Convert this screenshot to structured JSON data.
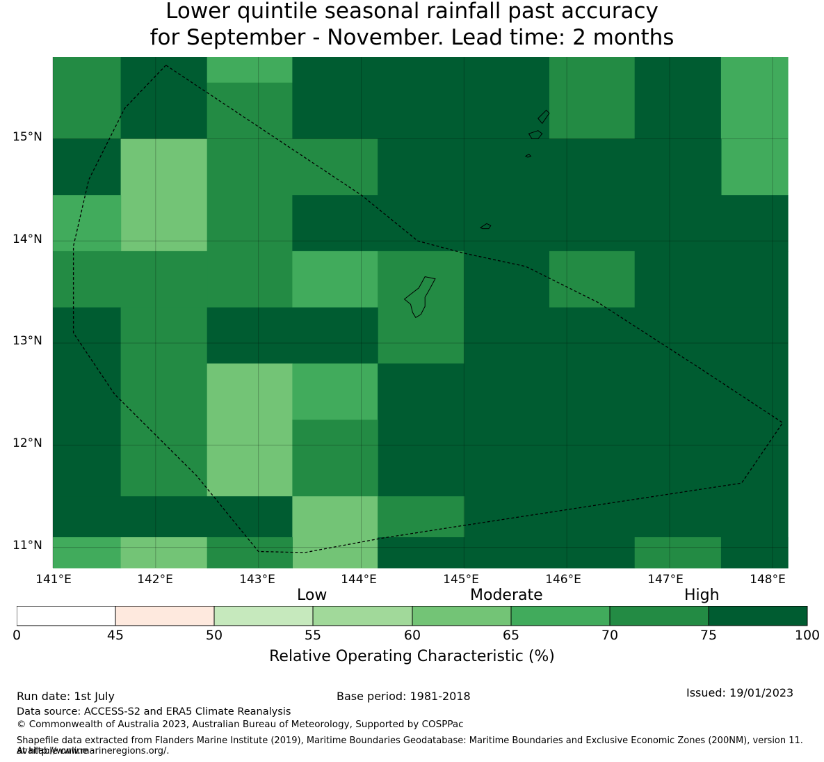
{
  "title_line1": "Lower quintile seasonal rainfall past accuracy",
  "title_line2": "for September - November. Lead time: 2 months",
  "colors": {
    "c45_50": "#fee9de",
    "c50_55": "#c6e9bd",
    "c55_60": "#a1d99a",
    "c60_65": "#73c476",
    "c65_70": "#41ab5c",
    "c70_75": "#238b44",
    "c75_100": "#005c31"
  },
  "map": {
    "lon_range": [
      141,
      148.15
    ],
    "lat_range": [
      10.8,
      15.8
    ],
    "lat_labels": [
      "15°N",
      "14°N",
      "13°N",
      "12°N",
      "11°N"
    ],
    "lon_labels": [
      "141°E",
      "142°E",
      "143°E",
      "144°E",
      "145°E",
      "146°E",
      "147°E",
      "148°E"
    ],
    "grid_cells": [
      {
        "lon0": 141.0,
        "lon1": 141.66,
        "lat0": 15.0,
        "lat1": 15.8,
        "cls": "c70_75"
      },
      {
        "lon0": 141.66,
        "lon1": 142.5,
        "lat0": 15.0,
        "lat1": 15.8,
        "cls": "c75_100"
      },
      {
        "lon0": 142.5,
        "lon1": 143.33,
        "lat0": 15.55,
        "lat1": 15.8,
        "cls": "c65_70"
      },
      {
        "lon0": 142.5,
        "lon1": 143.33,
        "lat0": 15.0,
        "lat1": 15.55,
        "cls": "c70_75"
      },
      {
        "lon0": 143.33,
        "lon1": 145.83,
        "lat0": 15.0,
        "lat1": 15.8,
        "cls": "c75_100"
      },
      {
        "lon0": 145.83,
        "lon1": 146.66,
        "lat0": 15.0,
        "lat1": 15.8,
        "cls": "c70_75"
      },
      {
        "lon0": 146.66,
        "lon1": 147.5,
        "lat0": 15.0,
        "lat1": 15.8,
        "cls": "c75_100"
      },
      {
        "lon0": 147.5,
        "lon1": 148.15,
        "lat0": 14.45,
        "lat1": 15.8,
        "cls": "c65_70"
      },
      {
        "lon0": 141.0,
        "lon1": 141.66,
        "lat0": 14.45,
        "lat1": 15.0,
        "cls": "c75_100"
      },
      {
        "lon0": 141.66,
        "lon1": 142.5,
        "lat0": 13.9,
        "lat1": 15.0,
        "cls": "c60_65"
      },
      {
        "lon0": 142.5,
        "lon1": 143.33,
        "lat0": 13.35,
        "lat1": 15.0,
        "cls": "c70_75"
      },
      {
        "lon0": 143.33,
        "lon1": 144.16,
        "lat0": 14.45,
        "lat1": 15.0,
        "cls": "c70_75"
      },
      {
        "lon0": 144.16,
        "lon1": 147.5,
        "lat0": 14.45,
        "lat1": 15.0,
        "cls": "c75_100"
      },
      {
        "lon0": 141.0,
        "lon1": 141.66,
        "lat0": 13.9,
        "lat1": 14.45,
        "cls": "c65_70"
      },
      {
        "lon0": 143.33,
        "lon1": 148.15,
        "lat0": 13.9,
        "lat1": 14.45,
        "cls": "c75_100"
      },
      {
        "lon0": 141.0,
        "lon1": 142.5,
        "lat0": 13.35,
        "lat1": 13.9,
        "cls": "c70_75"
      },
      {
        "lon0": 143.33,
        "lon1": 144.16,
        "lat0": 13.35,
        "lat1": 13.9,
        "cls": "c65_70"
      },
      {
        "lon0": 144.16,
        "lon1": 145.0,
        "lat0": 12.8,
        "lat1": 13.9,
        "cls": "c70_75"
      },
      {
        "lon0": 145.0,
        "lon1": 145.83,
        "lat0": 13.35,
        "lat1": 13.9,
        "cls": "c75_100"
      },
      {
        "lon0": 145.83,
        "lon1": 146.66,
        "lat0": 13.35,
        "lat1": 13.9,
        "cls": "c70_75"
      },
      {
        "lon0": 146.66,
        "lon1": 148.15,
        "lat0": 13.35,
        "lat1": 13.9,
        "cls": "c75_100"
      },
      {
        "lon0": 141.0,
        "lon1": 141.66,
        "lat0": 11.5,
        "lat1": 13.35,
        "cls": "c75_100"
      },
      {
        "lon0": 141.66,
        "lon1": 142.5,
        "lat0": 11.5,
        "lat1": 13.35,
        "cls": "c70_75"
      },
      {
        "lon0": 142.5,
        "lon1": 144.16,
        "lat0": 12.8,
        "lat1": 13.35,
        "cls": "c75_100"
      },
      {
        "lon0": 145.0,
        "lon1": 148.15,
        "lat0": 10.8,
        "lat1": 13.35,
        "cls": "c75_100"
      },
      {
        "lon0": 142.5,
        "lon1": 143.33,
        "lat0": 11.5,
        "lat1": 12.8,
        "cls": "c60_65"
      },
      {
        "lon0": 143.33,
        "lon1": 144.16,
        "lat0": 12.25,
        "lat1": 12.8,
        "cls": "c65_70"
      },
      {
        "lon0": 144.16,
        "lon1": 145.0,
        "lat0": 11.5,
        "lat1": 12.8,
        "cls": "c75_100"
      },
      {
        "lon0": 143.33,
        "lon1": 144.16,
        "lat0": 11.5,
        "lat1": 12.25,
        "cls": "c70_75"
      },
      {
        "lon0": 141.0,
        "lon1": 143.33,
        "lat0": 11.1,
        "lat1": 11.5,
        "cls": "c75_100"
      },
      {
        "lon0": 143.33,
        "lon1": 144.16,
        "lat0": 10.8,
        "lat1": 11.5,
        "cls": "c60_65"
      },
      {
        "lon0": 144.16,
        "lon1": 145.0,
        "lat0": 11.1,
        "lat1": 11.5,
        "cls": "c70_75"
      },
      {
        "lon0": 141.0,
        "lon1": 141.66,
        "lat0": 10.8,
        "lat1": 11.1,
        "cls": "c65_70"
      },
      {
        "lon0": 141.66,
        "lon1": 142.5,
        "lat0": 10.8,
        "lat1": 11.1,
        "cls": "c60_65"
      },
      {
        "lon0": 142.5,
        "lon1": 143.33,
        "lat0": 10.8,
        "lat1": 11.1,
        "cls": "c70_75"
      },
      {
        "lon0": 144.16,
        "lon1": 146.66,
        "lat0": 10.8,
        "lat1": 11.1,
        "cls": "c75_100"
      },
      {
        "lon0": 146.66,
        "lon1": 147.5,
        "lat0": 10.8,
        "lat1": 11.1,
        "cls": "c70_75"
      },
      {
        "lon0": 147.5,
        "lon1": 148.15,
        "lat0": 10.8,
        "lat1": 11.1,
        "cls": "c75_100"
      }
    ],
    "eez_boundary": [
      [
        142.1,
        15.72
      ],
      [
        141.7,
        15.3
      ],
      [
        141.35,
        14.6
      ],
      [
        141.2,
        13.95
      ],
      [
        141.2,
        13.1
      ],
      [
        141.6,
        12.5
      ],
      [
        142.4,
        11.7
      ],
      [
        143.0,
        10.96
      ],
      [
        143.45,
        10.95
      ],
      [
        144.2,
        11.09
      ],
      [
        144.9,
        11.2
      ],
      [
        146.2,
        11.4
      ],
      [
        147.7,
        11.63
      ],
      [
        148.1,
        12.22
      ],
      [
        147.3,
        12.75
      ],
      [
        146.3,
        13.4
      ],
      [
        145.6,
        13.75
      ],
      [
        145.0,
        13.88
      ],
      [
        144.55,
        14.0
      ],
      [
        144.0,
        14.45
      ],
      [
        142.1,
        15.72
      ]
    ],
    "islands": [
      [
        [
          144.62,
          13.65
        ],
        [
          144.72,
          13.63
        ],
        [
          144.65,
          13.5
        ],
        [
          144.62,
          13.45
        ],
        [
          144.62,
          13.36
        ],
        [
          144.58,
          13.28
        ],
        [
          144.53,
          13.25
        ],
        [
          144.5,
          13.3
        ],
        [
          144.48,
          13.38
        ],
        [
          144.42,
          13.43
        ],
        [
          144.47,
          13.47
        ],
        [
          144.56,
          13.54
        ],
        [
          144.62,
          13.65
        ]
      ],
      [
        [
          145.16,
          14.13
        ],
        [
          145.22,
          14.17
        ],
        [
          145.26,
          14.15
        ],
        [
          145.24,
          14.12
        ],
        [
          145.18,
          14.12
        ],
        [
          145.16,
          14.13
        ]
      ],
      [
        [
          145.63,
          15.05
        ],
        [
          145.72,
          15.08
        ],
        [
          145.76,
          15.05
        ],
        [
          145.72,
          15.0
        ],
        [
          145.66,
          15.0
        ],
        [
          145.63,
          15.05
        ]
      ],
      [
        [
          145.72,
          15.2
        ],
        [
          145.8,
          15.28
        ],
        [
          145.83,
          15.25
        ],
        [
          145.76,
          15.15
        ],
        [
          145.72,
          15.2
        ]
      ],
      [
        [
          145.6,
          14.83
        ],
        [
          145.63,
          14.85
        ],
        [
          145.65,
          14.83
        ],
        [
          145.62,
          14.82
        ],
        [
          145.6,
          14.83
        ]
      ]
    ]
  },
  "categories": {
    "low": "Low",
    "moderate": "Moderate",
    "high": "High"
  },
  "colorbar": {
    "ticks": [
      0,
      45,
      50,
      55,
      60,
      65,
      70,
      75,
      100
    ],
    "label": "Relative Operating Characteristic (%)"
  },
  "footer": {
    "run_date": "Run date: 1st July",
    "base_period": "Base period: 1981-2018",
    "issued": "Issued: 19/01/2023",
    "data_source": "Data source: ACCESS-S2 and ERA5 Climate Reanalysis",
    "copyright": "© Commonwealth of Australia 2023, Australian Bureau of Meteorology, Supported by COSPPac",
    "shapefile_line1": "Shapefile data extracted from Flanders Marine Institute (2019), Maritime Boundaries Geodatabase: Maritime Boundaries and Exclusive Economic Zones (200NM), version 11. Available online",
    "shapefile_line2": "at http://www.marineregions.org/."
  }
}
